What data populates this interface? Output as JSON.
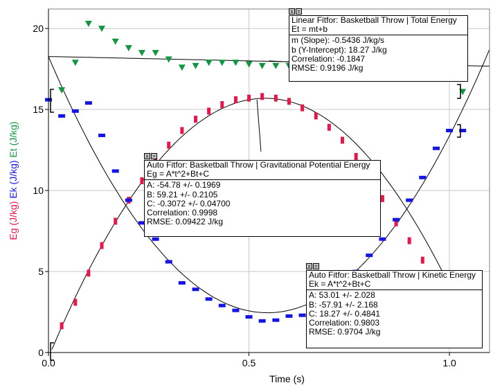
{
  "chart_data": {
    "type": "scatter",
    "xlabel": "Time (s)",
    "ylabels": [
      {
        "text": "Eg (J/kg)",
        "color": "#e8174a"
      },
      {
        "text": "Ek (J/kg)",
        "color": "#1414e6"
      },
      {
        "text": "Et (J/kg)",
        "color": "#129640"
      }
    ],
    "xlim": [
      0.0,
      1.1
    ],
    "ylim": [
      0,
      21.2
    ],
    "xticks": [
      {
        "v": 0.0,
        "label": "0.0"
      },
      {
        "v": 0.5,
        "label": "0.5"
      },
      {
        "v": 1.0,
        "label": "1.0"
      }
    ],
    "yticks": [
      {
        "v": 0,
        "label": "0"
      },
      {
        "v": 5,
        "label": "5"
      },
      {
        "v": 10,
        "label": "10"
      },
      {
        "v": 15,
        "label": "15"
      },
      {
        "v": 20,
        "label": "20"
      }
    ],
    "grid": true,
    "series": [
      {
        "name": "Eg",
        "color": "#e8174a",
        "marker": "vbar",
        "x": [
          0.033,
          0.067,
          0.1,
          0.133,
          0.167,
          0.2,
          0.233,
          0.267,
          0.3,
          0.333,
          0.367,
          0.4,
          0.433,
          0.467,
          0.5,
          0.533,
          0.567,
          0.6,
          0.633,
          0.667,
          0.7,
          0.733,
          0.767,
          0.8,
          0.833,
          0.867,
          0.9,
          0.933,
          0.967
        ],
        "y": [
          1.65,
          3.1,
          4.9,
          6.6,
          8.1,
          9.4,
          10.6,
          11.8,
          12.8,
          13.7,
          14.4,
          14.9,
          15.3,
          15.6,
          15.7,
          15.8,
          15.7,
          15.5,
          15.1,
          14.6,
          13.9,
          13.1,
          12.1,
          10.8,
          9.5,
          8.0,
          6.9,
          5.7,
          4.7
        ]
      },
      {
        "name": "Ek",
        "color": "#1414e6",
        "marker": "hbar",
        "x": [
          0.0,
          0.033,
          0.067,
          0.1,
          0.133,
          0.167,
          0.2,
          0.233,
          0.267,
          0.3,
          0.333,
          0.367,
          0.4,
          0.433,
          0.467,
          0.5,
          0.533,
          0.567,
          0.6,
          0.633,
          0.667,
          0.7,
          0.733,
          0.767,
          0.8,
          0.833,
          0.867,
          0.9,
          0.933,
          0.967,
          1.0,
          1.033
        ],
        "y": [
          15.6,
          14.6,
          14.9,
          15.4,
          13.4,
          11.2,
          9.4,
          8.0,
          7.0,
          5.6,
          4.3,
          3.9,
          3.3,
          2.9,
          2.6,
          2.2,
          1.95,
          2.0,
          2.25,
          2.3,
          2.8,
          3.4,
          4.2,
          5.0,
          6.0,
          7.0,
          8.2,
          9.4,
          10.8,
          12.6,
          13.7,
          13.7
        ]
      },
      {
        "name": "Et",
        "color": "#129640",
        "marker": "triangle",
        "x": [
          0.033,
          0.067,
          0.1,
          0.133,
          0.167,
          0.2,
          0.233,
          0.267,
          0.3,
          0.333,
          0.367,
          0.4,
          0.433,
          0.467,
          0.5,
          0.533,
          0.567,
          0.6,
          0.633,
          0.667,
          0.7,
          0.733,
          0.767,
          0.8,
          0.833,
          0.867,
          0.9,
          0.933,
          0.967,
          1.0,
          1.033
        ],
        "y": [
          16.2,
          17.9,
          20.3,
          20.0,
          19.2,
          18.8,
          18.5,
          18.5,
          18.1,
          17.6,
          17.7,
          17.9,
          17.9,
          17.9,
          17.8,
          17.7,
          17.7,
          17.7,
          17.6,
          17.7,
          17.5,
          17.6,
          17.4,
          17.6,
          17.4,
          17.5,
          17.6,
          17.3,
          17.4,
          17.3,
          16.1
        ]
      }
    ],
    "fits": [
      {
        "name": "Et fit",
        "type": "linear",
        "m": -0.5436,
        "b": 18.27,
        "x_range": [
          0.0,
          1.1
        ],
        "color": "#000000",
        "style": "solid"
      },
      {
        "name": "Eg fit",
        "type": "quadratic",
        "A": -54.78,
        "B": 59.21,
        "C": -0.3072,
        "x_range": [
          0.0,
          1.0
        ],
        "color": "#000000",
        "style": "solid"
      },
      {
        "name": "Ek fit",
        "type": "quadratic",
        "A": 53.01,
        "B": -57.91,
        "C": 18.27,
        "x_range": [
          0.0,
          1.1
        ],
        "color": "#000000",
        "style": "solid"
      }
    ]
  },
  "fit_boxes": [
    {
      "id": "linear-fit-box",
      "lines": [
        "Linear Fitfor: Basketball Throw | Total Energy",
        "Et = mt+b"
      ],
      "params": [
        "m (Slope): -0.5436 J/kg/s",
        "b (Y-Intercept): 18.27 J/kg",
        "Correlation: -0.1847",
        "RMSE: 0.9196 J/kg"
      ]
    },
    {
      "id": "eg-fit-box",
      "lines": [
        "Auto Fitfor: Basketball Throw | Gravitational Potential Energy",
        "Eg = A*t^2+Bt+C"
      ],
      "params": [
        "A: -54.78 +/- 0.1969",
        "B: 59.21 +/- 0.2105",
        "C: -0.3072 +/- 0.04700",
        "Correlation: 0.9998",
        "RMSE: 0.09422 J/kg"
      ]
    },
    {
      "id": "ek-fit-box",
      "lines": [
        "Auto Fitfor: Basketball Throw | Kinetic Energy",
        "Ek = A*t^2+Bt+C"
      ],
      "params": [
        "A: 53.01 +/- 2.028",
        "B: -57.91 +/- 2.168",
        "C: 18.27 +/- 0.4841",
        "Correlation: 0.9803",
        "RMSE: 0.9704 J/kg"
      ]
    }
  ],
  "box_buttons": [
    "x",
    "="
  ]
}
